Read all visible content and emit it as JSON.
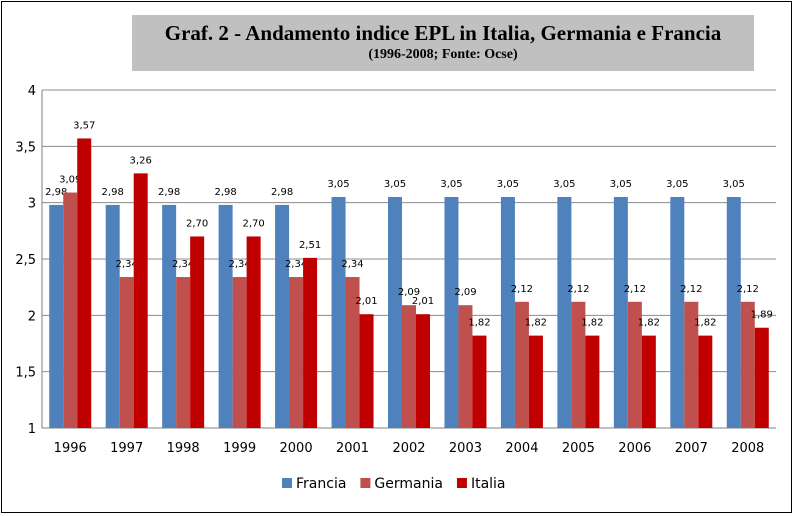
{
  "chart_data": {
    "type": "bar",
    "title": "Graf. 2 - Andamento indice EPL in Italia, Germania e Francia",
    "subtitle": "(1996-2008; Fonte: Ocse)",
    "categories": [
      "1996",
      "1997",
      "1998",
      "1999",
      "2000",
      "2001",
      "2002",
      "2003",
      "2004",
      "2005",
      "2006",
      "2007",
      "2008"
    ],
    "series": [
      {
        "name": "Francia",
        "color": "#4f81bd",
        "values": [
          2.98,
          2.98,
          2.98,
          2.98,
          2.98,
          3.05,
          3.05,
          3.05,
          3.05,
          3.05,
          3.05,
          3.05,
          3.05
        ]
      },
      {
        "name": "Germania",
        "color": "#c0504d",
        "values": [
          3.09,
          2.34,
          2.34,
          2.34,
          2.34,
          2.34,
          2.09,
          2.09,
          2.12,
          2.12,
          2.12,
          2.12,
          2.12
        ]
      },
      {
        "name": "Italia",
        "color": "#c00000",
        "values": [
          3.57,
          3.26,
          2.7,
          2.7,
          2.51,
          2.01,
          2.01,
          1.82,
          1.82,
          1.82,
          1.82,
          1.82,
          1.89
        ]
      }
    ],
    "ylim": [
      1,
      4
    ],
    "yticks": [
      "1",
      "1,5",
      "2",
      "2,5",
      "3",
      "3,5",
      "4"
    ],
    "grid": true,
    "legend_position": "bottom",
    "decimal_separator": ","
  }
}
